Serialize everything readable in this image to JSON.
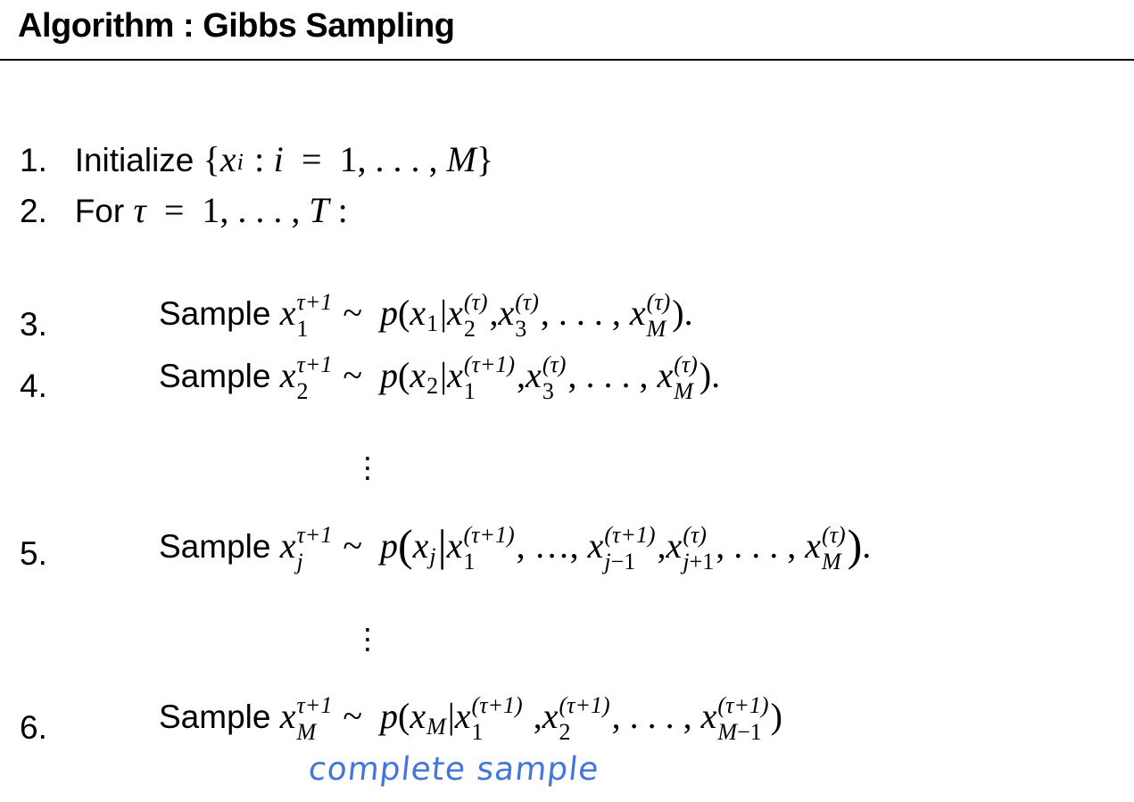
{
  "title": "Algorithm : Gibbs Sampling",
  "steps": {
    "s1": {
      "num": "1.",
      "text": "Initialize"
    },
    "s2": {
      "num": "2.",
      "text": "For"
    },
    "s3": {
      "num": "3.",
      "text": "Sample"
    },
    "s4": {
      "num": "4.",
      "text": "Sample"
    },
    "s5": {
      "num": "5.",
      "text": "Sample"
    },
    "s6": {
      "num": "6.",
      "text": "Sample"
    }
  },
  "annotation": "complete sample",
  "annotation_color": "#3a6fd8"
}
